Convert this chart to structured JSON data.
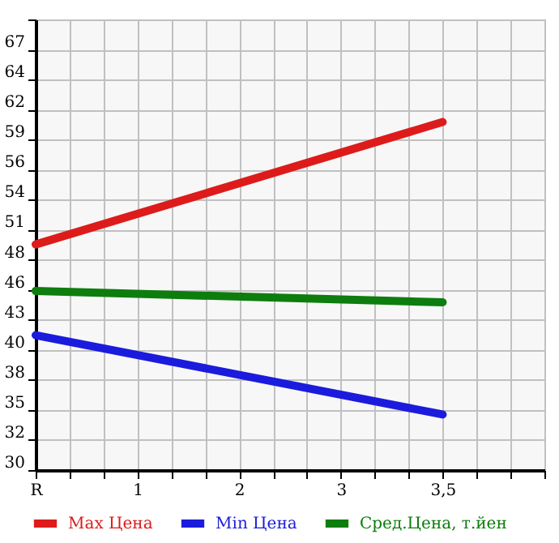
{
  "chart_data": {
    "type": "line",
    "categories": [
      "R",
      null,
      null,
      "1",
      null,
      null,
      "2",
      null,
      null,
      "3",
      null,
      null,
      "3,5",
      null,
      null,
      null
    ],
    "ylim": [
      29.7,
      69.45
    ],
    "yticks": [
      {
        "value": 29.7,
        "label": "30"
      },
      {
        "value": 32.35,
        "label": "32"
      },
      {
        "value": 35.0,
        "label": "35"
      },
      {
        "value": 37.65,
        "label": "38"
      },
      {
        "value": 40.3,
        "label": "40"
      },
      {
        "value": 42.95,
        "label": "43"
      },
      {
        "value": 45.6,
        "label": "46"
      },
      {
        "value": 48.25,
        "label": "48"
      },
      {
        "value": 50.9,
        "label": "51"
      },
      {
        "value": 53.55,
        "label": "54"
      },
      {
        "value": 56.2,
        "label": "56"
      },
      {
        "value": 58.85,
        "label": "59"
      },
      {
        "value": 61.5,
        "label": "62"
      },
      {
        "value": 64.15,
        "label": "64"
      },
      {
        "value": 66.8,
        "label": "67"
      },
      {
        "value": 69.45,
        "label": null
      }
    ],
    "grid": true,
    "legend": "bottom",
    "line_style": "solid",
    "series": [
      {
        "name": "Max Цена",
        "color": "#dd1b1b",
        "values": [
          49.6,
          null,
          null,
          null,
          null,
          null,
          null,
          null,
          null,
          null,
          null,
          null,
          60.4,
          null,
          null,
          null
        ]
      },
      {
        "name": "Min Цена",
        "color": "#1b1bdd",
        "values": [
          41.6,
          null,
          null,
          null,
          null,
          null,
          null,
          null,
          null,
          null,
          null,
          null,
          34.6,
          null,
          null,
          null
        ]
      },
      {
        "name": "Сред.Цена, т.йен",
        "color": "#0d7d0d",
        "values": [
          45.5,
          null,
          null,
          null,
          null,
          null,
          null,
          null,
          null,
          null,
          null,
          null,
          44.5,
          null,
          null,
          null
        ]
      }
    ]
  }
}
